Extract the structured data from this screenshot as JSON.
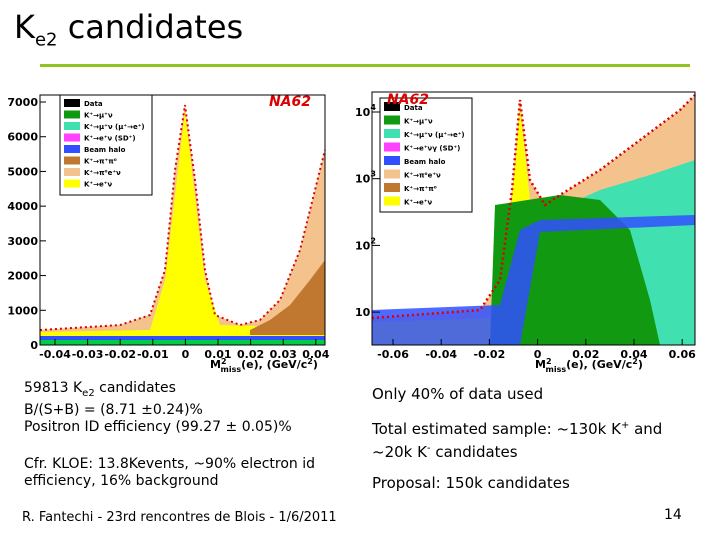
{
  "title": {
    "main": "K",
    "sub": "e2",
    "rest": " candidates"
  },
  "left_plot": {
    "label": "NA62",
    "yticks": [
      "7000",
      "6000",
      "5000",
      "4000",
      "3000",
      "2000",
      "1000",
      "0"
    ],
    "xticks": [
      "-0.04",
      "-0.03",
      "-0.02",
      "-0.01",
      "0",
      "0.01",
      "0.02",
      "0.03",
      "0.04"
    ],
    "xlabel": {
      "m": "M",
      "sup": "2",
      "sub": "miss",
      "rest": "(e), (GeV/c",
      "sup2": "2",
      "end": ")"
    },
    "legend": [
      "Data",
      "K⁺→μ⁺ν",
      "K⁺→μ⁺ν (μ⁺→e⁺)",
      "K⁺→e⁺ν (SD⁺)",
      "Beam halo",
      "K⁺→π⁺π⁰",
      "K⁺→π⁰e⁺ν",
      "K⁺→e⁺ν"
    ]
  },
  "right_plot": {
    "label": "NA62",
    "yticks": [
      {
        "base": "10",
        "exp": "4"
      },
      {
        "base": "10",
        "exp": "3"
      },
      {
        "base": "10",
        "exp": "2"
      },
      {
        "base": "10"
      }
    ],
    "xticks": [
      "-0.06",
      "-0.04",
      "-0.02",
      "0",
      "0.02",
      "0.04",
      "0.06"
    ],
    "xlabel": {
      "m": "M",
      "sup": "2",
      "sub": "miss",
      "rest": "(e), (GeV/c",
      "sup2": "2",
      "end": ")"
    },
    "legend": [
      "Data",
      "K⁺→μ⁺ν",
      "K⁺→μ⁺ν (μ⁺→e⁺)",
      "K⁺→e⁺νγ (SD⁺)",
      "Beam halo",
      "K⁺→π⁰e⁺ν",
      "K⁺→π⁺π⁰",
      "K⁺→e⁺ν"
    ]
  },
  "left_text": {
    "line1": {
      "a": "59813 K",
      "sub": "e2",
      "b": " candidates"
    },
    "line2": "B/(S+B) = (8.71 ±0.24)%",
    "line3": "Positron ID efficiency (99.27 ± 0.05)%",
    "line4": "Cfr. KLOE: 13.8Kevents, ~90% electron id efficiency, 16% background"
  },
  "right_text": {
    "line1": "Only 40% of data used",
    "line2": {
      "a": "Total estimated sample: ~130k K",
      "sup1": "+",
      "b": " and ~20k K",
      "sup2": "-",
      "c": " candidates"
    },
    "line3": "Proposal: 150k candidates"
  },
  "footer": {
    "text": "R. Fantechi - 23rd rencontres de Blois - 1/6/2011",
    "page": "14"
  }
}
